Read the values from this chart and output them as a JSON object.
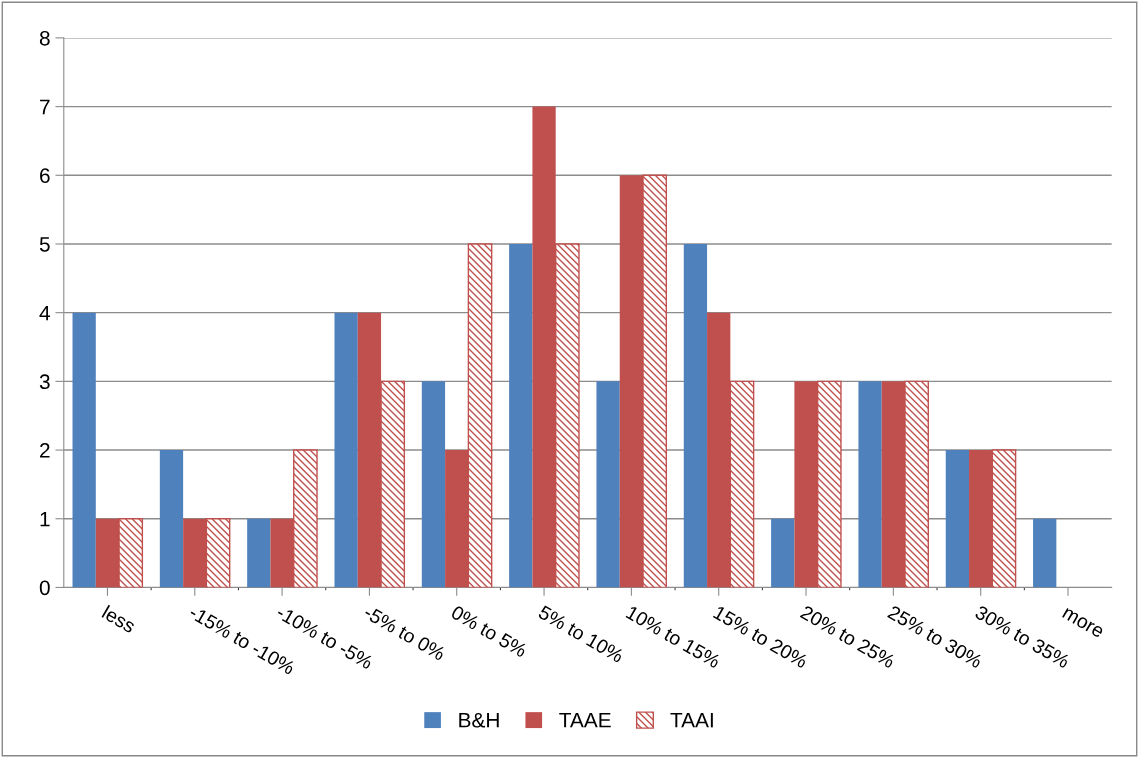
{
  "chart_data": {
    "type": "bar",
    "categories": [
      "less",
      "-15% to -10%",
      "-10% to -5%",
      "-5% to 0%",
      "0% to 5%",
      "5% to 10%",
      "10% to 15%",
      "15% to 20%",
      "20% to 25%",
      "25% to 30%",
      "30% to 35%",
      "more"
    ],
    "series": [
      {
        "name": "B&H",
        "color": "#4f81bd",
        "values": [
          4,
          2,
          1,
          4,
          3,
          5,
          3,
          5,
          1,
          3,
          2,
          1
        ]
      },
      {
        "name": "TAAE",
        "color": "#c0504d",
        "values": [
          1,
          1,
          1,
          4,
          2,
          7,
          6,
          4,
          3,
          3,
          2,
          0
        ]
      },
      {
        "name": "TAAI",
        "color": "#c0504d",
        "values": [
          1,
          1,
          2,
          3,
          5,
          5,
          6,
          3,
          3,
          3,
          2,
          0
        ]
      }
    ],
    "ylim": [
      0,
      8
    ],
    "yticks": [
      0,
      1,
      2,
      3,
      4,
      5,
      6,
      7,
      8
    ],
    "grid": "y",
    "legend": "bottom"
  }
}
